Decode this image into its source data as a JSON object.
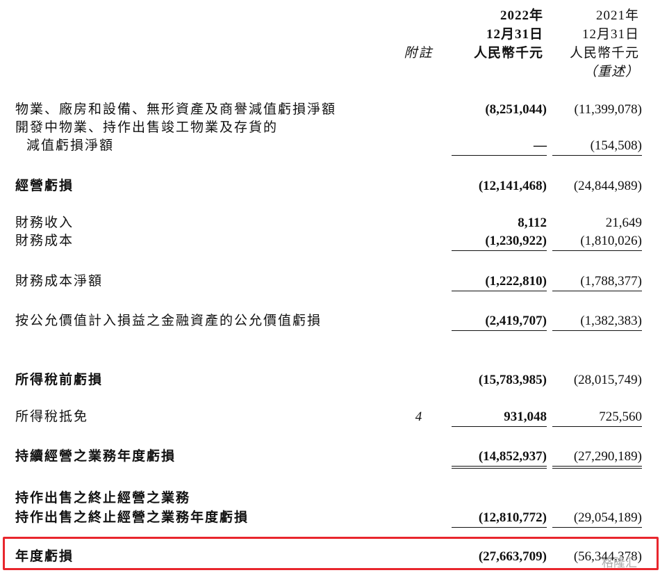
{
  "header": {
    "note_col": "附註",
    "col_2022": [
      "2022年",
      "12月31日",
      "人民幣千元"
    ],
    "col_2021": [
      "2021年",
      "12月31日",
      "人民幣千元",
      "（重述）"
    ]
  },
  "rows": [
    {
      "label": "物業、廠房和設備、無形資產及商譽減值虧損淨額",
      "y2022": "(8,251,044)",
      "y2021": "(11,399,078)"
    },
    {
      "label": "開發中物業、持作出售竣工物業及存貨的"
    },
    {
      "label": "減值虧損淨額",
      "y2022": "—",
      "y2021": "(154,508)"
    },
    {
      "label": "經營虧損",
      "y2022": "(12,141,468)",
      "y2021": "(24,844,989)"
    },
    {
      "label": "財務收入",
      "y2022": "8,112",
      "y2021": "21,649"
    },
    {
      "label": "財務成本",
      "y2022": "(1,230,922)",
      "y2021": "(1,810,026)"
    },
    {
      "label": "財務成本淨額",
      "y2022": "(1,222,810)",
      "y2021": "(1,788,377)"
    },
    {
      "label": "按公允價值計入損益之金融資產的公允價值虧損",
      "y2022": "(2,419,707)",
      "y2021": "(1,382,383)"
    },
    {
      "label": "所得稅前虧損",
      "y2022": "(15,783,985)",
      "y2021": "(28,015,749)"
    },
    {
      "label": "所得稅抵免",
      "note": "4",
      "y2022": "931,048",
      "y2021": "725,560"
    },
    {
      "label": "持續經營之業務年度虧損",
      "y2022": "(14,852,937)",
      "y2021": "(27,290,189)"
    },
    {
      "label": "持作出售之終止經營之業務"
    },
    {
      "label": "持作出售之終止經營之業務年度虧損",
      "y2022": "(12,810,772)",
      "y2021": "(29,054,189)"
    },
    {
      "label": "年度虧損",
      "y2022": "(27,663,709)",
      "y2021": "(56,344,378)"
    }
  ],
  "watermark": "格隆汇"
}
